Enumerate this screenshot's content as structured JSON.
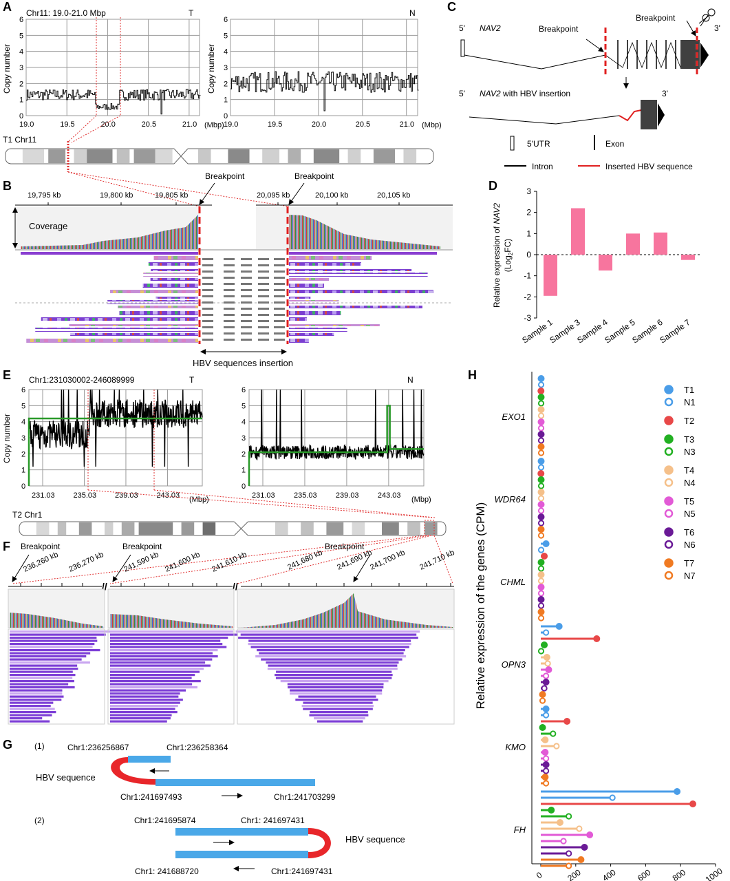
{
  "panels": {
    "A": {
      "label": "A",
      "left_title": "Chr11: 19.0-21.0 Mbp",
      "left_tag": "T",
      "right_tag": "N",
      "ylabel": "Copy number",
      "yticks": [
        "0",
        "1",
        "2",
        "3",
        "4",
        "5",
        "6"
      ],
      "xticks": [
        "19.0",
        "19.5",
        "20.0",
        "20.5",
        "21.0"
      ],
      "xunit": "(Mbp)",
      "ideogram_label": "T1 Chr11"
    },
    "B": {
      "label": "B",
      "breakpoint_left": "Breakpoint",
      "breakpoint_right": "Breakpoint",
      "ticks_left": [
        "19,795 kb",
        "19,800 kb",
        "19,805 kb"
      ],
      "ticks_right": [
        "20,095 kb",
        "20,100 kb",
        "20,105 kb"
      ],
      "coverage_label": "Coverage",
      "insertion_label": "HBV sequences insertion"
    },
    "C": {
      "label": "C",
      "five_prime": "5'",
      "three_prime": "3'",
      "gene": "NAV2",
      "gene2_prefix": "NAV2",
      "gene2_suffix": " with HBV insertion",
      "breakpoint1": "Breakpoint",
      "breakpoint2": "Breakpoint",
      "legend": {
        "utr": "5'UTR",
        "exon": "Exon",
        "intron": "Intron",
        "hbv": "Inserted HBV sequence"
      }
    },
    "D": {
      "label": "D"
    },
    "E": {
      "label": "E",
      "left_title": "Chr1:231030002-246089999",
      "left_tag": "T",
      "right_tag": "N",
      "ylabel": "Copy number",
      "yticks": [
        "0",
        "1",
        "2",
        "3",
        "4",
        "5",
        "6"
      ],
      "xticks": [
        "231.03",
        "235.03",
        "239.03",
        "243.03"
      ],
      "xunit": "(Mbp)",
      "ideogram_label": "T2   Chr1"
    },
    "F": {
      "label": "F",
      "breakpoints": [
        "Breakpoint",
        "Breakpoint",
        "Breakpoint"
      ],
      "ticks": [
        "236,260 kb",
        "236,270 kb",
        "241,590 kb",
        "241,600 kb",
        "241,610 kb",
        "241,680 kb",
        "241,690 kb",
        "241,700 kb",
        "241,710 kb"
      ]
    },
    "G": {
      "label": "G",
      "item1": {
        "num": "(1)",
        "a": "Chr1:236256867",
        "b": "Chr1:236258364",
        "c": "Chr1:241697493",
        "d": "Chr1:241703299",
        "hbv": "HBV sequence"
      },
      "item2": {
        "num": "(2)",
        "a": "Chr1:241695874",
        "b": "Chr1: 241697431",
        "c": "Chr1: 241688720",
        "d": "Chr1:241697431",
        "hbv": "HBV sequence"
      }
    },
    "H": {
      "label": "H",
      "ylabel": "Relative expression of  the genes (CPM)",
      "xticks": [
        "0",
        "200",
        "400",
        "600",
        "800",
        "1000"
      ]
    }
  },
  "chart_data": [
    {
      "type": "bar",
      "panel": "D",
      "title": "",
      "ylabel": "Relative expression of NAV2 (Log2FC)",
      "categories": [
        "Sample 1",
        "Sample 3",
        "Sample 4",
        "Sample 5",
        "Sample 6",
        "Sample 7"
      ],
      "values": [
        -1.95,
        2.2,
        -0.75,
        1.0,
        1.05,
        -0.25
      ],
      "ylim": [
        -3,
        3
      ],
      "yticks": [
        "-3",
        "-2",
        "-1",
        "0",
        "1",
        "2",
        "3"
      ],
      "color": "#f7759e"
    },
    {
      "type": "lollipop",
      "panel": "H",
      "xlabel": "",
      "ylabel": "Relative expression of  the genes (CPM)",
      "xlim": [
        0,
        1000
      ],
      "genes": [
        "EXO1",
        "WDR64",
        "CHML",
        "OPN3",
        "KMO",
        "FH"
      ],
      "series_order": [
        "T1",
        "N1",
        "T2",
        "T3",
        "N3",
        "T4",
        "N4",
        "T5",
        "N5",
        "T6",
        "N6",
        "T7",
        "N7"
      ],
      "series_colors": {
        "T1": "#4a9de8",
        "N1": "#4a9de8",
        "T2": "#e84848",
        "T3": "#22b022",
        "N3": "#22b022",
        "T4": "#f5c08a",
        "N4": "#f5c08a",
        "T5": "#e25ad6",
        "N5": "#e25ad6",
        "T6": "#6a1a96",
        "N6": "#6a1a96",
        "T7": "#f07a22",
        "N7": "#f07a22"
      },
      "values": {
        "EXO1": [
          2,
          2,
          1,
          2,
          2,
          2,
          2,
          2,
          2,
          2,
          2,
          2,
          2
        ],
        "WDR64": [
          2,
          2,
          1,
          2,
          2,
          2,
          2,
          2,
          2,
          2,
          2,
          2,
          2
        ],
        "CHML": [
          30,
          2,
          20,
          2,
          2,
          2,
          2,
          2,
          2,
          2,
          2,
          2,
          2
        ],
        "OPN3": [
          105,
          30,
          320,
          20,
          2,
          35,
          40,
          45,
          30,
          30,
          20,
          10,
          10
        ],
        "KMO": [
          30,
          30,
          150,
          10,
          70,
          25,
          90,
          25,
          30,
          30,
          30,
          25,
          30
        ],
        "FH": [
          780,
          410,
          870,
          60,
          160,
          110,
          220,
          280,
          130,
          250,
          160,
          230,
          160
        ]
      },
      "legend_entries": [
        "T1",
        "N1",
        "T2",
        "T3",
        "N3",
        "T4",
        "N4",
        "T5",
        "N5",
        "T6",
        "N6",
        "T7",
        "N7"
      ]
    }
  ]
}
